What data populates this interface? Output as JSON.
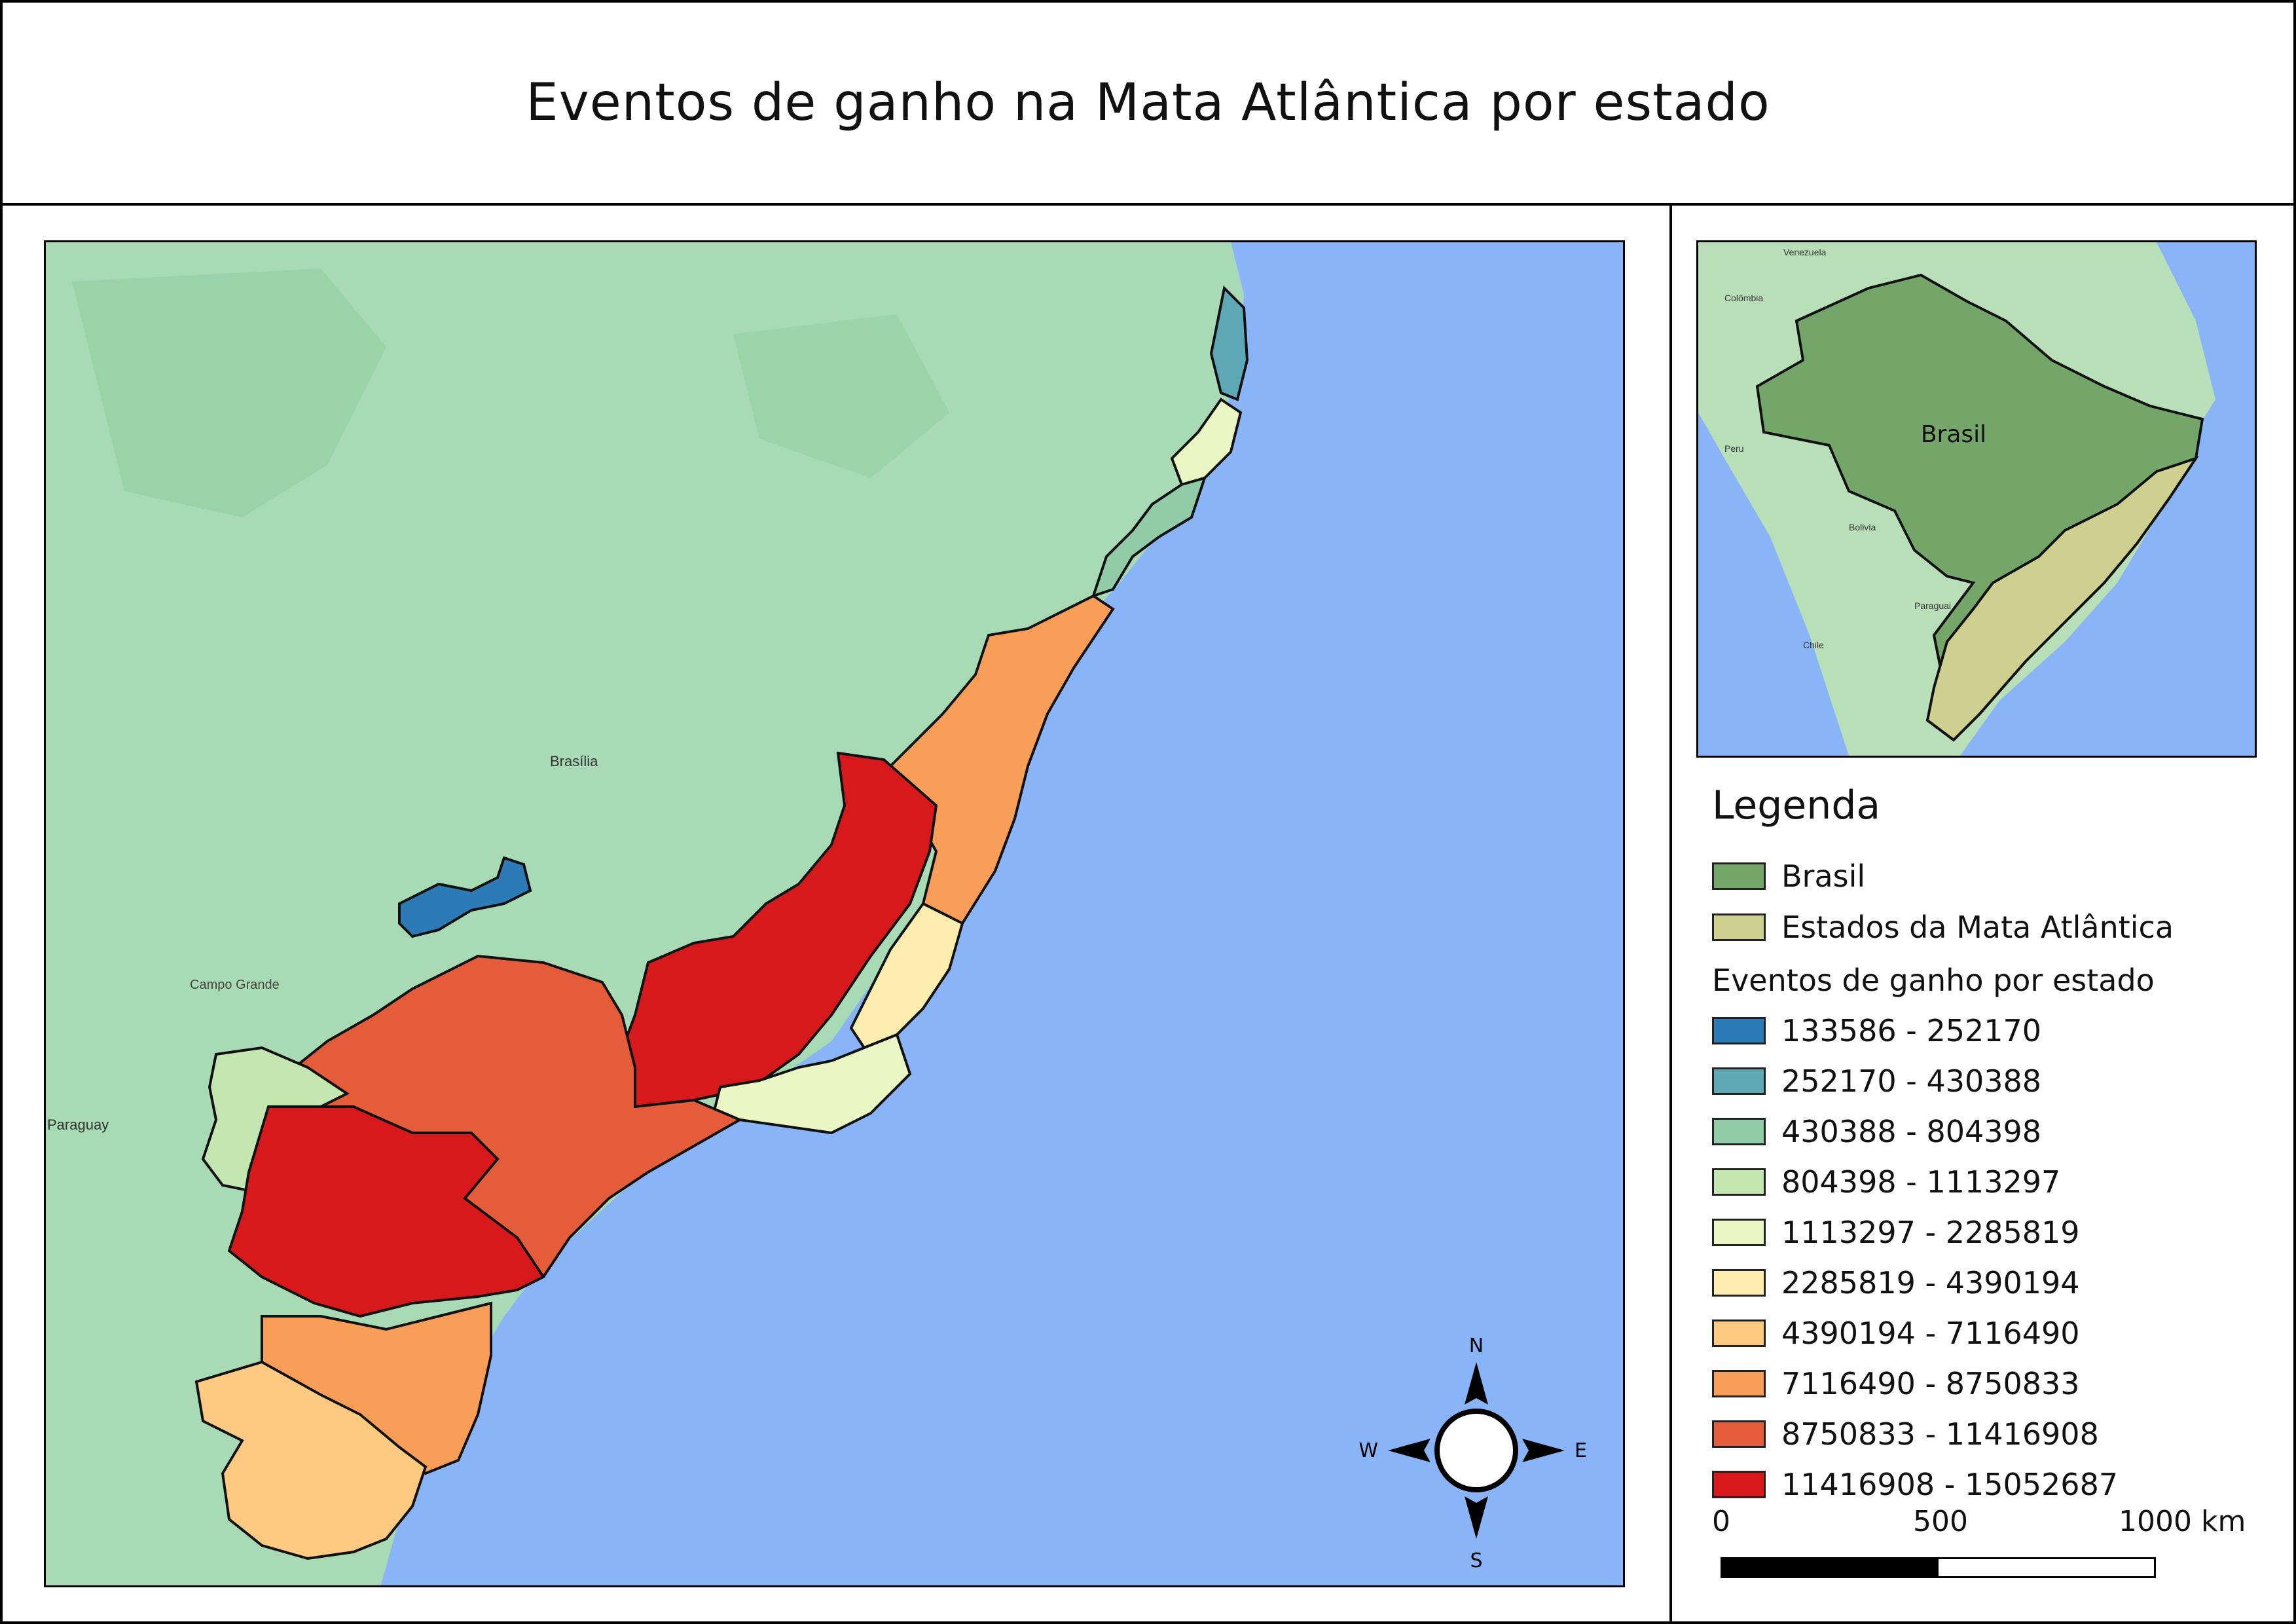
{
  "title": "Eventos de ganho na Mata Atlântica por estado",
  "basemap": {
    "ocean_color": "#8ab4f8",
    "land_color": "#a8dab5",
    "labels": [
      "Brasília",
      "Paraguay",
      "Campo Grande"
    ]
  },
  "inset": {
    "country_label": "Brasil",
    "country_color": "#74a66a",
    "states_color": "#cdd08e",
    "neighbor_labels": [
      "Venezuela",
      "Colômbia",
      "Peru",
      "Bolivia",
      "Paraguai",
      "Chile"
    ]
  },
  "compass": {
    "n": "N",
    "s": "S",
    "e": "E",
    "w": "W"
  },
  "legend": {
    "title": "Legenda",
    "items": [
      {
        "label": "Brasil",
        "color": "#74a66a"
      },
      {
        "label": "Estados da Mata Atlântica",
        "color": "#cdd08e"
      }
    ],
    "subtitle": "Eventos de ganho por estado",
    "classes": [
      {
        "label": "133586 - 252170",
        "color": "#2c7bb6"
      },
      {
        "label": "252170 - 430388",
        "color": "#5ea8b5"
      },
      {
        "label": "430388 - 804398",
        "color": "#92cba8"
      },
      {
        "label": "804398 - 1113297",
        "color": "#c4e6b0"
      },
      {
        "label": "1113297 - 2285819",
        "color": "#eaf6c4"
      },
      {
        "label": "2285819 - 4390194",
        "color": "#fdeeb0"
      },
      {
        "label": "4390194 - 7116490",
        "color": "#fec980"
      },
      {
        "label": "7116490 - 8750833",
        "color": "#f89e59"
      },
      {
        "label": "8750833 - 11416908",
        "color": "#e45c3a"
      },
      {
        "label": "11416908 - 15052687",
        "color": "#d7191c"
      }
    ]
  },
  "scale": {
    "labels": [
      "0",
      "500",
      "1000 km"
    ]
  }
}
